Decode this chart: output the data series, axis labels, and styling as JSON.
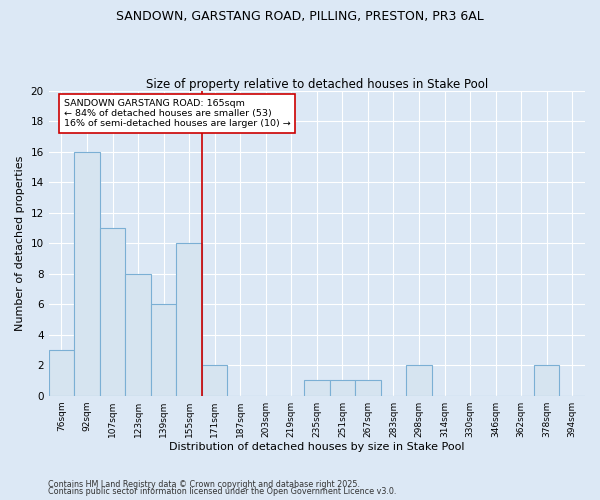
{
  "title1": "SANDOWN, GARSTANG ROAD, PILLING, PRESTON, PR3 6AL",
  "title2": "Size of property relative to detached houses in Stake Pool",
  "xlabel": "Distribution of detached houses by size in Stake Pool",
  "ylabel": "Number of detached properties",
  "categories": [
    "76sqm",
    "92sqm",
    "107sqm",
    "123sqm",
    "139sqm",
    "155sqm",
    "171sqm",
    "187sqm",
    "203sqm",
    "219sqm",
    "235sqm",
    "251sqm",
    "267sqm",
    "283sqm",
    "298sqm",
    "314sqm",
    "330sqm",
    "346sqm",
    "362sqm",
    "378sqm",
    "394sqm"
  ],
  "values": [
    3,
    16,
    11,
    8,
    6,
    10,
    2,
    0,
    0,
    0,
    1,
    1,
    1,
    0,
    2,
    0,
    0,
    0,
    0,
    2,
    0
  ],
  "bar_color": "#d6e4f0",
  "bar_edge_color": "#7bafd4",
  "vertical_line_x": 5.5,
  "vertical_line_color": "#cc0000",
  "annotation_text": "SANDOWN GARSTANG ROAD: 165sqm\n← 84% of detached houses are smaller (53)\n16% of semi-detached houses are larger (10) →",
  "annotation_box_color": "#ffffff",
  "annotation_box_edge": "#cc0000",
  "ylim": [
    0,
    20
  ],
  "yticks": [
    0,
    2,
    4,
    6,
    8,
    10,
    12,
    14,
    16,
    18,
    20
  ],
  "fig_bg": "#dce8f5",
  "plot_bg": "#dce8f5",
  "grid_color": "#ffffff",
  "footer1": "Contains HM Land Registry data © Crown copyright and database right 2025.",
  "footer2": "Contains public sector information licensed under the Open Government Licence v3.0."
}
